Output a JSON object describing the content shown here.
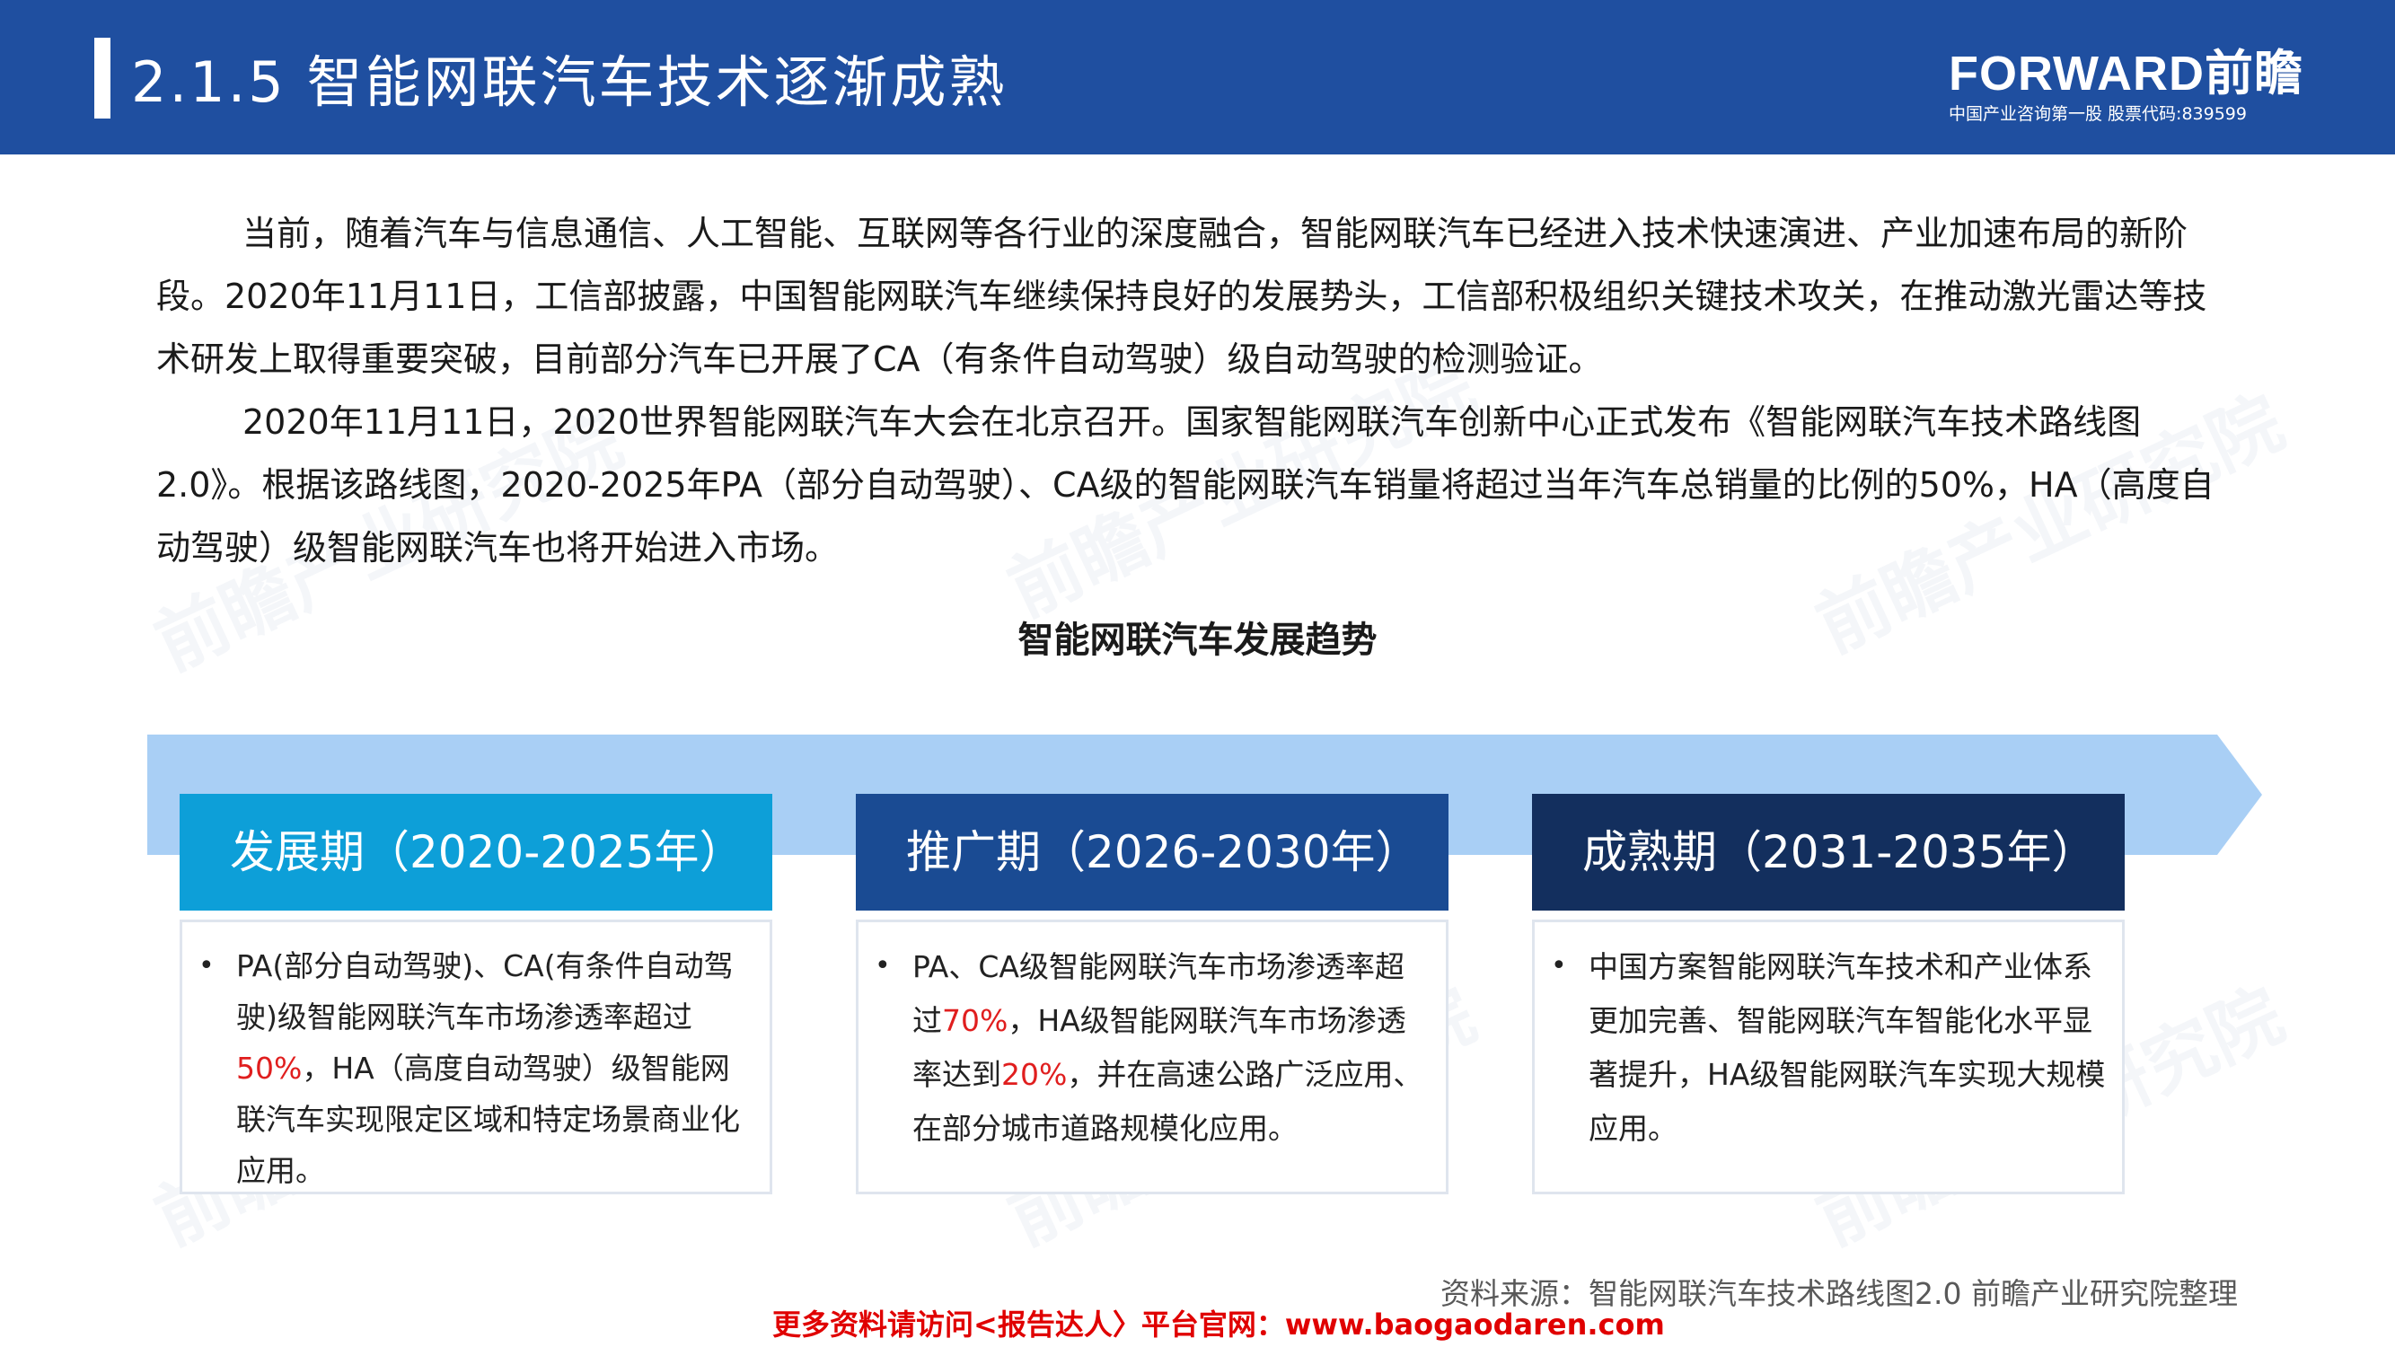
{
  "header": {
    "title": "2.1.5 智能网联汽车技术逐渐成熟",
    "logo_text": "FORWARD前瞻",
    "logo_sub": "中国产业咨询第一股  股票代码:839599"
  },
  "watermark": "前瞻产业研究院",
  "body": {
    "para1": "当前，随着汽车与信息通信、人工智能、互联网等各行业的深度融合，智能网联汽车已经进入技术快速演进、产业加速布局的新阶段。2020年11月11日，工信部披露，中国智能网联汽车继续保持良好的发展势头，工信部积极组织关键技术攻关，在推动激光雷达等技术研发上取得重要突破，目前部分汽车已开展了CA（有条件自动驾驶）级自动驾驶的检测验证。",
    "para2": "2020年11月11日，2020世界智能网联汽车大会在北京召开。国家智能网联汽车创新中心正式发布《智能网联汽车技术路线图2.0》。根据该路线图，2020-2025年PA（部分自动驾驶）、CA级的智能网联汽车销量将超过当年汽车总销量的比例的50%，HA（高度自动驾驶）级智能网联汽车也将开始进入市场。"
  },
  "chart_title": "智能网联汽车发展趋势",
  "phases": [
    {
      "title": "发展期（2020-2025年）",
      "color": "#0d9fd8",
      "bullet": "•",
      "text_a": "PA(部分自动驾驶)、CA(有条件自动驾驶)级智能网联汽车市场渗透率超过",
      "hl1": "50%",
      "text_b": "，HA（高度自动驾驶）级智能网联汽车实现限定区域和特定场景商业化应用。"
    },
    {
      "title": "推广期（2026-2030年）",
      "color": "#1a4b93",
      "bullet": "•",
      "text_a": "PA、CA级智能网联汽车市场渗透率超过",
      "hl1": "70%",
      "text_b": "，HA级智能网联汽车市场渗透率达到",
      "hl2": "20%",
      "text_c": "，并在高速公路广泛应用、在部分城市道路规模化应用。"
    },
    {
      "title": "成熟期（2031-2035年）",
      "color": "#132f5e",
      "bullet": "•",
      "text_a": "中国方案智能网联汽车技术和产业体系更加完善、智能网联汽车智能化水平显著提升，HA级智能网联汽车实现大规模应用。"
    }
  ],
  "footer": {
    "source": "资料来源：智能网联汽车技术路线图2.0 前瞻产业研究院整理",
    "more": "更多资料请访问<报告达人〉平台官网：www.baogaodaren.com"
  }
}
